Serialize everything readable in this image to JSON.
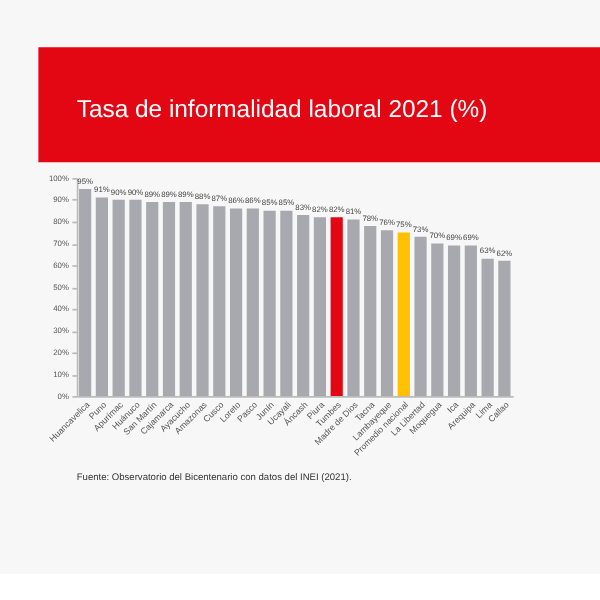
{
  "chart_data": {
    "type": "bar",
    "title": "Tasa de informalidad laboral 2021 (%)",
    "categories": [
      "Huancavelica",
      "Puno",
      "Apurímac",
      "Huánuco",
      "San Martín",
      "Cajamarca",
      "Ayacucho",
      "Amazonas",
      "Cusco",
      "Loreto",
      "Pasco",
      "Junín",
      "Ucayali",
      "Áncash",
      "Piura",
      "Tumbes",
      "Madre de Dios",
      "Tacna",
      "Lambayeque",
      "Promedio nacional",
      "La Libertad",
      "Moquegua",
      "Ica",
      "Arequipa",
      "Lima",
      "Callao"
    ],
    "values": [
      95,
      91,
      90,
      90,
      89,
      89,
      89,
      88,
      87,
      86,
      86,
      85,
      85,
      83,
      82,
      82,
      81,
      78,
      76,
      75,
      73,
      70,
      69,
      69,
      63,
      62
    ],
    "value_labels": [
      "95%",
      "91%",
      "90%",
      "90%",
      "89%",
      "89%",
      "89%",
      "88%",
      "87%",
      "86%",
      "86%",
      "85%",
      "85%",
      "83%",
      "82%",
      "82%",
      "81%",
      "78%",
      "76%",
      "75%",
      "73%",
      "70%",
      "69%",
      "69%",
      "63%",
      "62%"
    ],
    "colors": [
      "#a7a9ae",
      "#a7a9ae",
      "#a7a9ae",
      "#a7a9ae",
      "#a7a9ae",
      "#a7a9ae",
      "#a7a9ae",
      "#a7a9ae",
      "#a7a9ae",
      "#a7a9ae",
      "#a7a9ae",
      "#a7a9ae",
      "#a7a9ae",
      "#a7a9ae",
      "#a7a9ae",
      "#e30613",
      "#a7a9ae",
      "#a7a9ae",
      "#a7a9ae",
      "#ffc000",
      "#a7a9ae",
      "#a7a9ae",
      "#a7a9ae",
      "#a7a9ae",
      "#a7a9ae",
      "#a7a9ae"
    ],
    "ylim": [
      0,
      100
    ],
    "yticks": [
      {
        "value": 0,
        "label": "0%"
      },
      {
        "value": 10,
        "label": "10%"
      },
      {
        "value": 20,
        "label": "20%"
      },
      {
        "value": 30,
        "label": "30%"
      },
      {
        "value": 40,
        "label": "40%"
      },
      {
        "value": 50,
        "label": "50%"
      },
      {
        "value": 60,
        "label": "60%"
      },
      {
        "value": 70,
        "label": "70%"
      },
      {
        "value": 80,
        "label": "80%"
      },
      {
        "value": 90,
        "label": "90%"
      },
      {
        "value": 100,
        "label": "100%"
      }
    ],
    "grid": false,
    "annotations": [
      "Fuente: Observatorio del Bicentenario con datos del INEI (2021)."
    ]
  }
}
